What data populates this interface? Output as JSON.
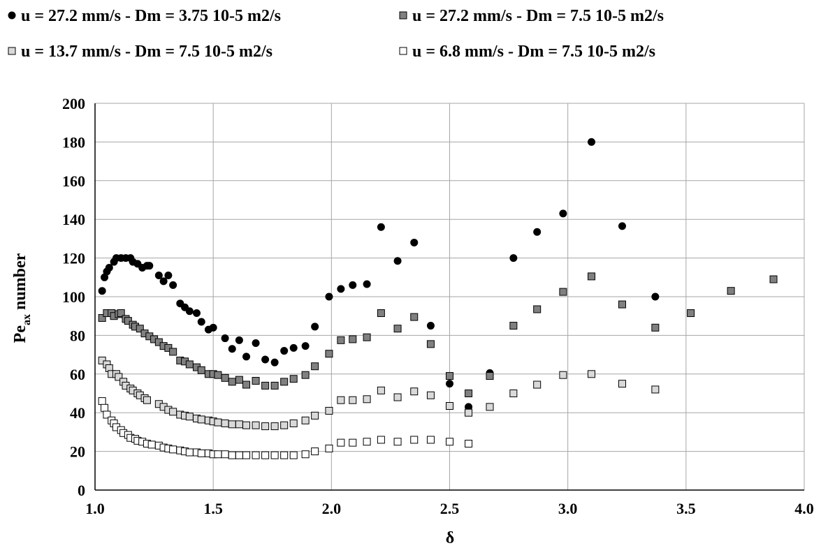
{
  "chart_data": {
    "type": "scatter",
    "title": "",
    "xlabel": "δ",
    "ylabel": "Pe",
    "ylabel_sub": "ax",
    "ylabel_suffix": " number",
    "xlim": [
      1.0,
      4.0
    ],
    "ylim": [
      0,
      200
    ],
    "xticks": [
      1.0,
      1.5,
      2.0,
      2.5,
      3.0,
      3.5,
      4.0
    ],
    "xtick_labels": [
      "1.0",
      "1.5",
      "2.0",
      "2.5",
      "3.0",
      "3.5",
      "4.0"
    ],
    "yticks": [
      0,
      20,
      40,
      60,
      80,
      100,
      120,
      140,
      160,
      180,
      200
    ],
    "ytick_labels": [
      "0",
      "20",
      "40",
      "60",
      "80",
      "100",
      "120",
      "140",
      "160",
      "180",
      "200"
    ],
    "grid": true,
    "legend_position": "top",
    "series": [
      {
        "name": "u = 27.2 mm/s - Dm = 3.75 10-5 m2/s",
        "marker": "circle",
        "fill": "#000000",
        "stroke": "#000000",
        "x": [
          1.03,
          1.04,
          1.05,
          1.06,
          1.08,
          1.09,
          1.11,
          1.13,
          1.15,
          1.16,
          1.18,
          1.2,
          1.22,
          1.23,
          1.27,
          1.29,
          1.31,
          1.33,
          1.36,
          1.38,
          1.4,
          1.43,
          1.45,
          1.48,
          1.5,
          1.55,
          1.58,
          1.61,
          1.64,
          1.68,
          1.72,
          1.76,
          1.8,
          1.84,
          1.89,
          1.93,
          1.99,
          2.04,
          2.09,
          2.15,
          2.21,
          2.28,
          2.35,
          2.42,
          2.5,
          2.58,
          2.67,
          2.77,
          2.87,
          2.98,
          3.1,
          3.23,
          3.37
        ],
        "y": [
          103,
          110,
          113,
          115,
          118,
          120,
          120,
          120,
          120,
          118,
          117,
          115,
          116,
          116,
          111,
          108,
          111,
          106,
          96.5,
          94.5,
          92.5,
          91.5,
          87,
          83,
          84,
          78.5,
          73,
          77.5,
          69,
          76,
          67.5,
          66,
          72,
          73.5,
          74.5,
          84.5,
          100,
          104,
          106,
          106.5,
          136,
          118.5,
          128,
          85,
          55,
          43,
          60.5,
          120,
          133.5,
          143,
          180,
          136.5,
          100
        ]
      },
      {
        "name": "u = 27.2 mm/s - Dm = 7.5 10-5 m2/s",
        "marker": "square",
        "fill": "#808080",
        "stroke": "#000000",
        "x": [
          1.03,
          1.05,
          1.07,
          1.08,
          1.1,
          1.11,
          1.13,
          1.14,
          1.16,
          1.17,
          1.19,
          1.21,
          1.23,
          1.25,
          1.27,
          1.29,
          1.31,
          1.33,
          1.36,
          1.38,
          1.4,
          1.43,
          1.45,
          1.48,
          1.5,
          1.52,
          1.55,
          1.58,
          1.61,
          1.64,
          1.68,
          1.72,
          1.76,
          1.8,
          1.84,
          1.89,
          1.93,
          1.99,
          2.04,
          2.09,
          2.15,
          2.21,
          2.28,
          2.35,
          2.42,
          2.5,
          2.58,
          2.67,
          2.77,
          2.87,
          2.98,
          3.1,
          3.23,
          3.37,
          3.52,
          3.69,
          3.87
        ],
        "y": [
          89,
          91.5,
          91.5,
          90,
          91,
          91.5,
          88.5,
          87.5,
          85.5,
          84.5,
          83.5,
          81,
          79.5,
          78,
          76.5,
          74.5,
          73.5,
          71.5,
          67,
          66.5,
          65,
          63.5,
          62,
          60,
          60,
          59.5,
          58,
          56,
          57,
          54.5,
          56.5,
          54,
          54,
          56,
          57.5,
          59.5,
          64,
          70.5,
          77.5,
          78,
          79,
          91.5,
          83.5,
          89.5,
          75.5,
          59,
          50,
          59,
          85,
          93.5,
          102.5,
          110.5,
          96,
          84,
          91.5,
          103,
          109
        ]
      },
      {
        "name": "u = 13.7 mm/s - Dm = 7.5 10-5 m2/s",
        "marker": "square",
        "fill": "#d9d9d9",
        "stroke": "#000000",
        "x": [
          1.03,
          1.05,
          1.06,
          1.07,
          1.09,
          1.1,
          1.12,
          1.13,
          1.15,
          1.16,
          1.18,
          1.19,
          1.21,
          1.22,
          1.27,
          1.29,
          1.31,
          1.33,
          1.36,
          1.38,
          1.4,
          1.43,
          1.45,
          1.48,
          1.5,
          1.52,
          1.55,
          1.58,
          1.61,
          1.64,
          1.68,
          1.72,
          1.76,
          1.8,
          1.84,
          1.89,
          1.93,
          1.99,
          2.04,
          2.09,
          2.15,
          2.21,
          2.28,
          2.35,
          2.42,
          2.5,
          2.58,
          2.67,
          2.77,
          2.87,
          2.98,
          3.1,
          3.23,
          3.37
        ],
        "y": [
          67,
          65,
          63,
          60,
          60,
          58.5,
          56,
          54,
          52.5,
          51.5,
          50,
          49,
          47.5,
          46.5,
          44.5,
          43,
          41.5,
          40.5,
          39,
          38.5,
          38,
          37,
          36.5,
          36,
          35.5,
          35,
          34.5,
          34,
          34,
          33.5,
          33.5,
          33,
          33,
          33.5,
          34.5,
          36,
          38.5,
          41,
          46.5,
          46.5,
          47,
          51.5,
          48,
          51,
          49,
          43.5,
          40,
          43,
          50,
          54.5,
          59.5,
          60,
          55,
          52
        ]
      },
      {
        "name": "u = 6.8 mm/s - Dm = 7.5 10-5 m2/s",
        "marker": "square",
        "fill": "#ffffff",
        "stroke": "#000000",
        "x": [
          1.03,
          1.04,
          1.05,
          1.07,
          1.08,
          1.09,
          1.11,
          1.12,
          1.14,
          1.15,
          1.17,
          1.18,
          1.2,
          1.22,
          1.24,
          1.27,
          1.29,
          1.31,
          1.33,
          1.36,
          1.38,
          1.4,
          1.43,
          1.45,
          1.48,
          1.5,
          1.52,
          1.55,
          1.58,
          1.61,
          1.64,
          1.68,
          1.72,
          1.76,
          1.8,
          1.84,
          1.89,
          1.93,
          1.99,
          2.04,
          2.09,
          2.15,
          2.21,
          2.28,
          2.35,
          2.42,
          2.5,
          2.58
        ],
        "y": [
          46,
          42.5,
          39,
          36,
          34.5,
          32.5,
          31,
          29.5,
          28.5,
          27,
          26.5,
          25.5,
          25,
          24,
          23.5,
          23,
          22,
          21.5,
          21,
          20.5,
          20,
          19.5,
          19.5,
          19,
          19,
          18.5,
          18.5,
          18.5,
          18,
          18,
          18,
          18,
          18,
          18,
          18,
          18,
          18.5,
          20,
          21.5,
          24.5,
          24.5,
          25,
          26,
          25,
          26,
          26,
          25,
          24
        ]
      }
    ]
  }
}
